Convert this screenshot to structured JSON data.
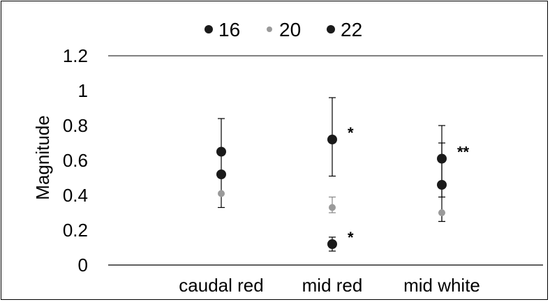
{
  "chart_data": {
    "type": "scatter",
    "categories": [
      "caudal red",
      "mid red",
      "mid white"
    ],
    "ylabel": "Magnitude",
    "xlabel": "",
    "title": "",
    "ylim": [
      0,
      1.2
    ],
    "yticks": [
      0,
      0.2,
      0.4,
      0.6,
      0.8,
      1,
      1.2
    ],
    "ytick_labels": [
      "0",
      "0.2",
      "0.4",
      "0.6",
      "0.8",
      "1",
      "1.2"
    ],
    "legend": {
      "position": "top"
    },
    "series": [
      {
        "name": "16",
        "color": "#1a1a1a",
        "values": [
          0.52,
          0.12,
          0.46
        ],
        "err_low": [
          null,
          0.04,
          0.07
        ],
        "err_high": [
          null,
          0.04,
          0.24
        ]
      },
      {
        "name": "20",
        "color": "#9a9a9a",
        "values": [
          0.41,
          0.33,
          0.3
        ],
        "err_low": [
          null,
          0.03,
          0.05
        ],
        "err_high": [
          null,
          0.06,
          0.0
        ]
      },
      {
        "name": "22",
        "color": "#1a1a1a",
        "values": [
          0.65,
          0.72,
          0.61
        ],
        "err_low": [
          0.32,
          0.21,
          0.36
        ],
        "err_high": [
          0.19,
          0.24,
          0.19
        ]
      }
    ],
    "annotations": [
      {
        "category": "mid red",
        "y": 0.72,
        "text": "*"
      },
      {
        "category": "mid red",
        "y": 0.12,
        "text": "*"
      },
      {
        "category": "mid white",
        "y": 0.61,
        "text": "**"
      }
    ]
  }
}
